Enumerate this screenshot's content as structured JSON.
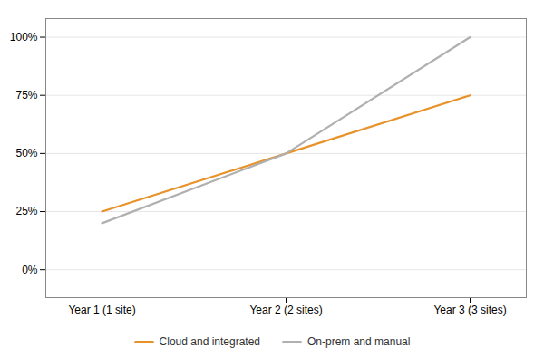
{
  "chart_data": {
    "type": "line",
    "categories": [
      "Year 1 (1 site)",
      "Year 2 (2 sites)",
      "Year 3 (3 sites)"
    ],
    "series": [
      {
        "name": "Cloud and integrated",
        "color": "#E8922A",
        "values": [
          0.25,
          0.5,
          0.75
        ]
      },
      {
        "name": "On-prem and manual",
        "color": "#B0B0B0",
        "values": [
          0.2,
          0.5,
          1.0
        ]
      }
    ],
    "ylim": [
      -0.12,
      1.08
    ],
    "yticks": [
      {
        "value": 0.0,
        "label": "0%"
      },
      {
        "value": 0.25,
        "label": "25%"
      },
      {
        "value": 0.5,
        "label": "50%"
      },
      {
        "value": 0.75,
        "label": "75%"
      },
      {
        "value": 1.0,
        "label": "100%"
      }
    ],
    "grid": true,
    "legend": "bottom"
  }
}
